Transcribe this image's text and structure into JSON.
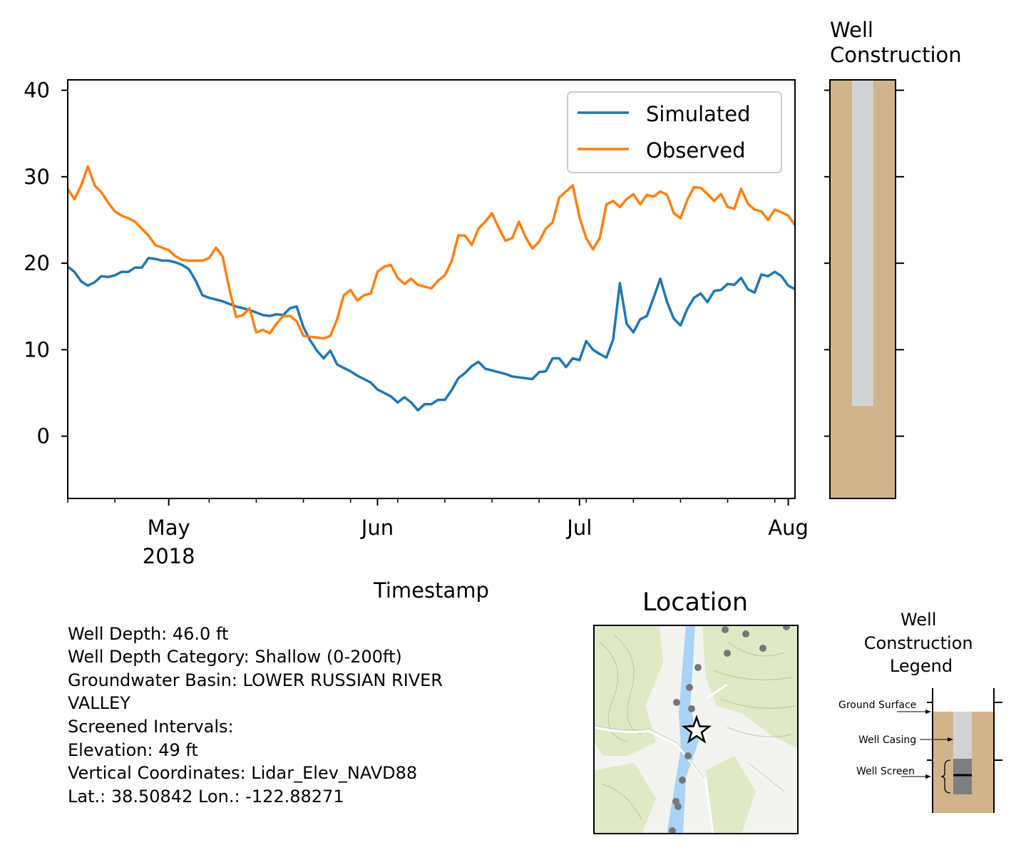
{
  "chart_data": [
    {
      "type": "line",
      "xlabel": "Timestamp",
      "ylabel": "",
      "ylim": [
        -7.2,
        41.2
      ],
      "x_range": [
        "2018-04-16",
        "2018-08-02"
      ],
      "x_major_ticks": [
        {
          "date": "2018-05-01",
          "label": "May",
          "sublabel": "2018"
        },
        {
          "date": "2018-06-01",
          "label": "Jun",
          "sublabel": ""
        },
        {
          "date": "2018-07-01",
          "label": "Jul",
          "sublabel": ""
        },
        {
          "date": "2018-08-01",
          "label": "Aug",
          "sublabel": ""
        }
      ],
      "x_minor_ticks": [
        "2018-04-16",
        "2018-04-23",
        "2018-05-07",
        "2018-05-14",
        "2018-05-21",
        "2018-05-28",
        "2018-06-04",
        "2018-06-11",
        "2018-06-18",
        "2018-06-25",
        "2018-07-02",
        "2018-07-09",
        "2018-07-16",
        "2018-07-23",
        "2018-07-30"
      ],
      "y_ticks": [
        0,
        10,
        20,
        30,
        40
      ],
      "grid": false,
      "legend": "top-right",
      "series": [
        {
          "name": "Simulated",
          "color": "#1f77b4",
          "points": [
            [
              "2018-04-16",
              19.6
            ],
            [
              "2018-04-17",
              19.0
            ],
            [
              "2018-04-18",
              17.9
            ],
            [
              "2018-04-19",
              17.4
            ],
            [
              "2018-04-20",
              17.8
            ],
            [
              "2018-04-21",
              18.5
            ],
            [
              "2018-04-22",
              18.4
            ],
            [
              "2018-04-23",
              18.6
            ],
            [
              "2018-04-24",
              19.0
            ],
            [
              "2018-04-25",
              19.0
            ],
            [
              "2018-04-26",
              19.5
            ],
            [
              "2018-04-27",
              19.5
            ],
            [
              "2018-04-28",
              20.6
            ],
            [
              "2018-04-29",
              20.5
            ],
            [
              "2018-04-30",
              20.3
            ],
            [
              "2018-05-01",
              20.3
            ],
            [
              "2018-05-02",
              20.1
            ],
            [
              "2018-05-03",
              19.8
            ],
            [
              "2018-05-04",
              19.3
            ],
            [
              "2018-05-05",
              18.0
            ],
            [
              "2018-05-06",
              16.3
            ],
            [
              "2018-05-07",
              16.0
            ],
            [
              "2018-05-08",
              15.8
            ],
            [
              "2018-05-09",
              15.6
            ],
            [
              "2018-05-10",
              15.3
            ],
            [
              "2018-05-11",
              15.0
            ],
            [
              "2018-05-12",
              14.8
            ],
            [
              "2018-05-13",
              14.6
            ],
            [
              "2018-05-14",
              14.3
            ],
            [
              "2018-05-15",
              14.0
            ],
            [
              "2018-05-16",
              13.9
            ],
            [
              "2018-05-17",
              14.1
            ],
            [
              "2018-05-18",
              14.0
            ],
            [
              "2018-05-19",
              14.8
            ],
            [
              "2018-05-20",
              15.0
            ],
            [
              "2018-05-21",
              12.6
            ],
            [
              "2018-05-22",
              11.1
            ],
            [
              "2018-05-23",
              9.9
            ],
            [
              "2018-05-24",
              9.0
            ],
            [
              "2018-05-25",
              9.9
            ],
            [
              "2018-05-26",
              8.3
            ],
            [
              "2018-05-27",
              7.9
            ],
            [
              "2018-05-28",
              7.5
            ],
            [
              "2018-05-29",
              7.0
            ],
            [
              "2018-05-30",
              6.6
            ],
            [
              "2018-05-31",
              6.2
            ],
            [
              "2018-06-01",
              5.4
            ],
            [
              "2018-06-02",
              5.0
            ],
            [
              "2018-06-03",
              4.6
            ],
            [
              "2018-06-04",
              3.9
            ],
            [
              "2018-06-05",
              4.5
            ],
            [
              "2018-06-06",
              3.9
            ],
            [
              "2018-06-07",
              3.0
            ],
            [
              "2018-06-08",
              3.7
            ],
            [
              "2018-06-09",
              3.7
            ],
            [
              "2018-06-10",
              4.2
            ],
            [
              "2018-06-11",
              4.2
            ],
            [
              "2018-06-12",
              5.3
            ],
            [
              "2018-06-13",
              6.7
            ],
            [
              "2018-06-14",
              7.3
            ],
            [
              "2018-06-15",
              8.1
            ],
            [
              "2018-06-16",
              8.6
            ],
            [
              "2018-06-17",
              7.8
            ],
            [
              "2018-06-18",
              7.6
            ],
            [
              "2018-06-19",
              7.4
            ],
            [
              "2018-06-20",
              7.2
            ],
            [
              "2018-06-21",
              6.9
            ],
            [
              "2018-06-22",
              6.8
            ],
            [
              "2018-06-23",
              6.7
            ],
            [
              "2018-06-24",
              6.6
            ],
            [
              "2018-06-25",
              7.4
            ],
            [
              "2018-06-26",
              7.5
            ],
            [
              "2018-06-27",
              9.0
            ],
            [
              "2018-06-28",
              9.0
            ],
            [
              "2018-06-29",
              8.0
            ],
            [
              "2018-06-30",
              9.0
            ],
            [
              "2018-07-01",
              8.8
            ],
            [
              "2018-07-02",
              11.0
            ],
            [
              "2018-07-03",
              10.0
            ],
            [
              "2018-07-04",
              9.5
            ],
            [
              "2018-07-05",
              9.1
            ],
            [
              "2018-07-06",
              11.2
            ],
            [
              "2018-07-07",
              17.7
            ],
            [
              "2018-07-08",
              13.0
            ],
            [
              "2018-07-09",
              12.0
            ],
            [
              "2018-07-10",
              13.5
            ],
            [
              "2018-07-11",
              13.9
            ],
            [
              "2018-07-12",
              16.0
            ],
            [
              "2018-07-13",
              18.2
            ],
            [
              "2018-07-14",
              15.5
            ],
            [
              "2018-07-15",
              13.6
            ],
            [
              "2018-07-16",
              12.8
            ],
            [
              "2018-07-17",
              14.7
            ],
            [
              "2018-07-18",
              16.0
            ],
            [
              "2018-07-19",
              16.5
            ],
            [
              "2018-07-20",
              15.5
            ],
            [
              "2018-07-21",
              16.8
            ],
            [
              "2018-07-22",
              16.9
            ],
            [
              "2018-07-23",
              17.6
            ],
            [
              "2018-07-24",
              17.5
            ],
            [
              "2018-07-25",
              18.3
            ],
            [
              "2018-07-26",
              17.0
            ],
            [
              "2018-07-27",
              16.6
            ],
            [
              "2018-07-28",
              18.7
            ],
            [
              "2018-07-29",
              18.5
            ],
            [
              "2018-07-30",
              19.0
            ],
            [
              "2018-07-31",
              18.5
            ],
            [
              "2018-08-01",
              17.4
            ],
            [
              "2018-08-02",
              17.0
            ]
          ]
        },
        {
          "name": "Observed",
          "color": "#ff7f0e",
          "points": [
            [
              "2018-04-16",
              28.6
            ],
            [
              "2018-04-17",
              27.4
            ],
            [
              "2018-04-18",
              29.0
            ],
            [
              "2018-04-19",
              31.2
            ],
            [
              "2018-04-20",
              29.0
            ],
            [
              "2018-04-21",
              28.2
            ],
            [
              "2018-04-22",
              27.0
            ],
            [
              "2018-04-23",
              26.0
            ],
            [
              "2018-04-24",
              25.5
            ],
            [
              "2018-04-25",
              25.2
            ],
            [
              "2018-04-26",
              24.8
            ],
            [
              "2018-04-27",
              24.0
            ],
            [
              "2018-04-28",
              23.2
            ],
            [
              "2018-04-29",
              22.1
            ],
            [
              "2018-04-30",
              21.8
            ],
            [
              "2018-05-01",
              21.5
            ],
            [
              "2018-05-02",
              20.8
            ],
            [
              "2018-05-03",
              20.4
            ],
            [
              "2018-05-04",
              20.3
            ],
            [
              "2018-05-05",
              20.3
            ],
            [
              "2018-05-06",
              20.3
            ],
            [
              "2018-05-07",
              20.6
            ],
            [
              "2018-05-08",
              21.8
            ],
            [
              "2018-05-09",
              20.8
            ],
            [
              "2018-05-10",
              17.0
            ],
            [
              "2018-05-11",
              13.8
            ],
            [
              "2018-05-12",
              14.0
            ],
            [
              "2018-05-13",
              14.8
            ],
            [
              "2018-05-14",
              12.0
            ],
            [
              "2018-05-15",
              12.3
            ],
            [
              "2018-05-16",
              11.9
            ],
            [
              "2018-05-17",
              13.0
            ],
            [
              "2018-05-18",
              13.9
            ],
            [
              "2018-05-19",
              13.9
            ],
            [
              "2018-05-20",
              13.3
            ],
            [
              "2018-05-21",
              11.6
            ],
            [
              "2018-05-22",
              11.5
            ],
            [
              "2018-05-23",
              11.4
            ],
            [
              "2018-05-24",
              11.3
            ],
            [
              "2018-05-25",
              11.6
            ],
            [
              "2018-05-26",
              13.5
            ],
            [
              "2018-05-27",
              16.3
            ],
            [
              "2018-05-28",
              16.9
            ],
            [
              "2018-05-29",
              15.7
            ],
            [
              "2018-05-30",
              16.3
            ],
            [
              "2018-05-31",
              16.5
            ],
            [
              "2018-06-01",
              19.0
            ],
            [
              "2018-06-02",
              19.6
            ],
            [
              "2018-06-03",
              19.8
            ],
            [
              "2018-06-04",
              18.3
            ],
            [
              "2018-06-05",
              17.6
            ],
            [
              "2018-06-06",
              18.2
            ],
            [
              "2018-06-07",
              17.5
            ],
            [
              "2018-06-08",
              17.3
            ],
            [
              "2018-06-09",
              17.1
            ],
            [
              "2018-06-10",
              18.0
            ],
            [
              "2018-06-11",
              18.6
            ],
            [
              "2018-06-12",
              20.2
            ],
            [
              "2018-06-13",
              23.2
            ],
            [
              "2018-06-14",
              23.2
            ],
            [
              "2018-06-15",
              22.1
            ],
            [
              "2018-06-16",
              24.0
            ],
            [
              "2018-06-17",
              24.8
            ],
            [
              "2018-06-18",
              25.8
            ],
            [
              "2018-06-19",
              24.1
            ],
            [
              "2018-06-20",
              22.6
            ],
            [
              "2018-06-21",
              22.9
            ],
            [
              "2018-06-22",
              24.8
            ],
            [
              "2018-06-23",
              23.0
            ],
            [
              "2018-06-24",
              21.7
            ],
            [
              "2018-06-25",
              22.5
            ],
            [
              "2018-06-26",
              24.0
            ],
            [
              "2018-06-27",
              24.7
            ],
            [
              "2018-06-28",
              27.6
            ],
            [
              "2018-06-29",
              28.3
            ],
            [
              "2018-06-30",
              29.0
            ],
            [
              "2018-07-01",
              25.3
            ],
            [
              "2018-07-02",
              22.9
            ],
            [
              "2018-07-03",
              21.6
            ],
            [
              "2018-07-04",
              22.9
            ],
            [
              "2018-07-05",
              26.8
            ],
            [
              "2018-07-06",
              27.2
            ],
            [
              "2018-07-07",
              26.5
            ],
            [
              "2018-07-08",
              27.4
            ],
            [
              "2018-07-09",
              28.0
            ],
            [
              "2018-07-10",
              26.8
            ],
            [
              "2018-07-11",
              27.9
            ],
            [
              "2018-07-12",
              27.7
            ],
            [
              "2018-07-13",
              28.3
            ],
            [
              "2018-07-14",
              27.9
            ],
            [
              "2018-07-15",
              25.8
            ],
            [
              "2018-07-16",
              25.2
            ],
            [
              "2018-07-17",
              27.3
            ],
            [
              "2018-07-18",
              28.8
            ],
            [
              "2018-07-19",
              28.7
            ],
            [
              "2018-07-20",
              28.0
            ],
            [
              "2018-07-21",
              27.2
            ],
            [
              "2018-07-22",
              28.0
            ],
            [
              "2018-07-23",
              26.5
            ],
            [
              "2018-07-24",
              26.3
            ],
            [
              "2018-07-25",
              28.6
            ],
            [
              "2018-07-26",
              26.9
            ],
            [
              "2018-07-27",
              26.2
            ],
            [
              "2018-07-28",
              26.0
            ],
            [
              "2018-07-29",
              25.0
            ],
            [
              "2018-07-30",
              26.2
            ],
            [
              "2018-07-31",
              25.9
            ],
            [
              "2018-08-01",
              25.5
            ],
            [
              "2018-08-02",
              24.4
            ]
          ]
        }
      ]
    },
    {
      "type": "well-construction",
      "title": "Well\nConstruction",
      "ylim": [
        -7.2,
        41.2
      ],
      "ground_surface": 41.2,
      "casing_bottom": 3.5,
      "colors": {
        "soil": "#d2b48c",
        "casing": "#d3d3d3"
      }
    }
  ],
  "info": {
    "lines": [
      "Well Depth: 46.0 ft",
      "Well Depth Category: Shallow (0-200ft)",
      "Groundwater Basin: LOWER RUSSIAN RIVER",
      "VALLEY",
      "Screened Intervals:",
      "Elevation: 49 ft",
      "Vertical Coordinates: Lidar_Elev_NAVD88",
      "Lat.: 38.50842 Lon.: -122.88271"
    ]
  },
  "location": {
    "title": "Location",
    "colors": {
      "water": "#a9d4f5",
      "park": "#dfe9c6",
      "land": "#f3f3f0",
      "marker": "#777777"
    }
  },
  "legend_panel": {
    "title": "Well\nConstruction\nLegend",
    "ground_surface": "Ground Surface",
    "well_casing": "Well Casing",
    "well_screen": "Well Screen"
  }
}
